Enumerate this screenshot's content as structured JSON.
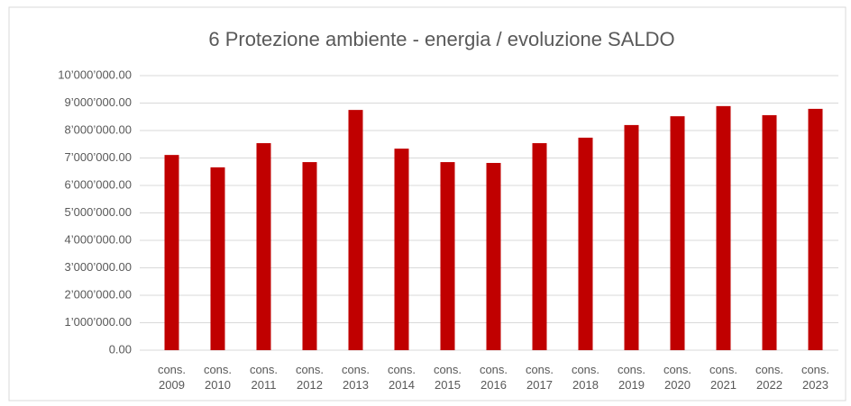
{
  "chart_data": {
    "type": "bar",
    "title": "6 Protezione ambiente - energia  /  evoluzione SALDO",
    "categories": [
      "cons. 2009",
      "cons. 2010",
      "cons. 2011",
      "cons. 2012",
      "cons. 2013",
      "cons. 2014",
      "cons. 2015",
      "cons. 2016",
      "cons. 2017",
      "cons. 2018",
      "cons. 2019",
      "cons. 2020",
      "cons. 2021",
      "cons. 2022",
      "cons. 2023"
    ],
    "values": [
      7110000,
      6660000,
      7540000,
      6850000,
      8750000,
      7340000,
      6850000,
      6820000,
      7540000,
      7740000,
      8200000,
      8520000,
      8890000,
      8560000,
      8790000
    ],
    "color": "#c00000",
    "ylim": [
      0,
      10000000
    ],
    "yticks": [
      {
        "value": 0,
        "label": "0.00"
      },
      {
        "value": 1000000,
        "label": "1’000’000.00"
      },
      {
        "value": 2000000,
        "label": "2’000’000.00"
      },
      {
        "value": 3000000,
        "label": "3’000’000.00"
      },
      {
        "value": 4000000,
        "label": "4’000’000.00"
      },
      {
        "value": 5000000,
        "label": "5’000’000.00"
      },
      {
        "value": 6000000,
        "label": "6’000’000.00"
      },
      {
        "value": 7000000,
        "label": "7’000’000.00"
      },
      {
        "value": 8000000,
        "label": "8’000’000.00"
      },
      {
        "value": 9000000,
        "label": "9’000’000.00"
      },
      {
        "value": 10000000,
        "label": "10’000’000.00"
      }
    ],
    "grid": true
  }
}
